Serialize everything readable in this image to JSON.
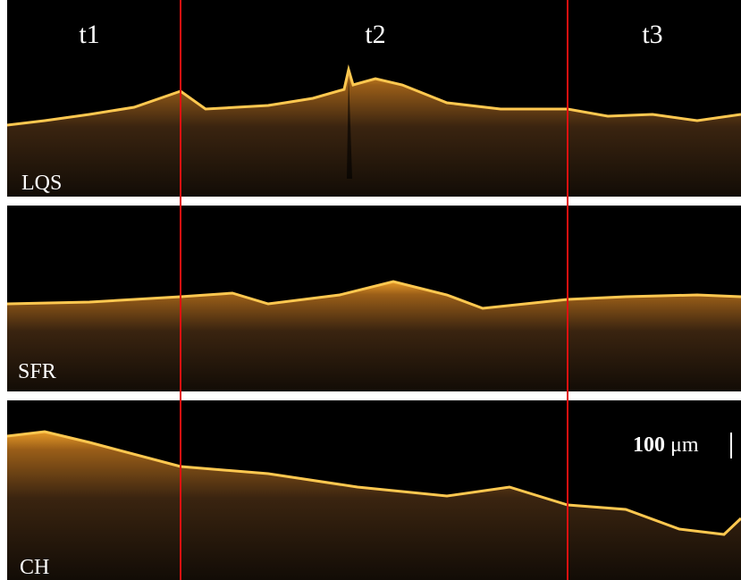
{
  "time_labels": [
    "t1",
    "t2",
    "t3"
  ],
  "panels": [
    {
      "label": "LQS"
    },
    {
      "label": "SFR"
    },
    {
      "label": "CH"
    }
  ],
  "scale_bar": {
    "value": "100",
    "unit": "μm"
  }
}
